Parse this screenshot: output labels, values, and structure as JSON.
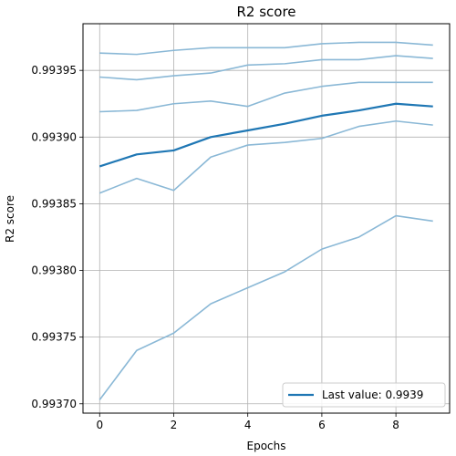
{
  "chart_data": {
    "type": "line",
    "title": "R2 score",
    "xlabel": "Epochs",
    "ylabel": "R2 score",
    "xlim": [
      -0.45,
      9.45
    ],
    "ylim": [
      0.993693,
      0.993985
    ],
    "grid": true,
    "x_ticks": [
      0,
      2,
      4,
      6,
      8
    ],
    "x_tick_labels": [
      "0",
      "2",
      "4",
      "6",
      "8"
    ],
    "y_ticks": [
      0.9937,
      0.99375,
      0.9938,
      0.99385,
      0.9939,
      0.99395
    ],
    "y_tick_labels": [
      "0.99370",
      "0.99375",
      "0.99380",
      "0.99385",
      "0.99390",
      "0.99395"
    ],
    "legend": {
      "position": "bottom-right",
      "label": "Last value: 0.9939"
    },
    "x": [
      0,
      1,
      2,
      3,
      4,
      5,
      6,
      7,
      8,
      9
    ],
    "series": [
      {
        "values": [
          0.993963,
          0.993962,
          0.993965,
          0.993967,
          0.993967,
          0.993967,
          0.99397,
          0.993971,
          0.993971,
          0.993969
        ],
        "color": "#8ab8d6",
        "emphasis": false
      },
      {
        "values": [
          0.993945,
          0.993943,
          0.993946,
          0.993948,
          0.993954,
          0.993955,
          0.993958,
          0.993958,
          0.993961,
          0.993959
        ],
        "color": "#8ab8d6",
        "emphasis": false
      },
      {
        "values": [
          0.993919,
          0.99392,
          0.993925,
          0.993927,
          0.993923,
          0.993933,
          0.993938,
          0.993941,
          0.993941,
          0.993941
        ],
        "color": "#8ab8d6",
        "emphasis": false
      },
      {
        "values": [
          0.993858,
          0.993869,
          0.99386,
          0.993885,
          0.993894,
          0.993896,
          0.993899,
          0.993908,
          0.993912,
          0.993909
        ],
        "color": "#8ab8d6",
        "emphasis": false
      },
      {
        "values": [
          0.993703,
          0.99374,
          0.993753,
          0.993775,
          0.993787,
          0.993799,
          0.993816,
          0.993825,
          0.993841,
          0.993837
        ],
        "color": "#8ab8d6",
        "emphasis": false
      },
      {
        "name": "Last value: 0.9939",
        "values": [
          0.993878,
          0.993887,
          0.99389,
          0.9939,
          0.993905,
          0.99391,
          0.993916,
          0.99392,
          0.993925,
          0.993923
        ],
        "color": "#1f77b4",
        "emphasis": true
      }
    ]
  }
}
